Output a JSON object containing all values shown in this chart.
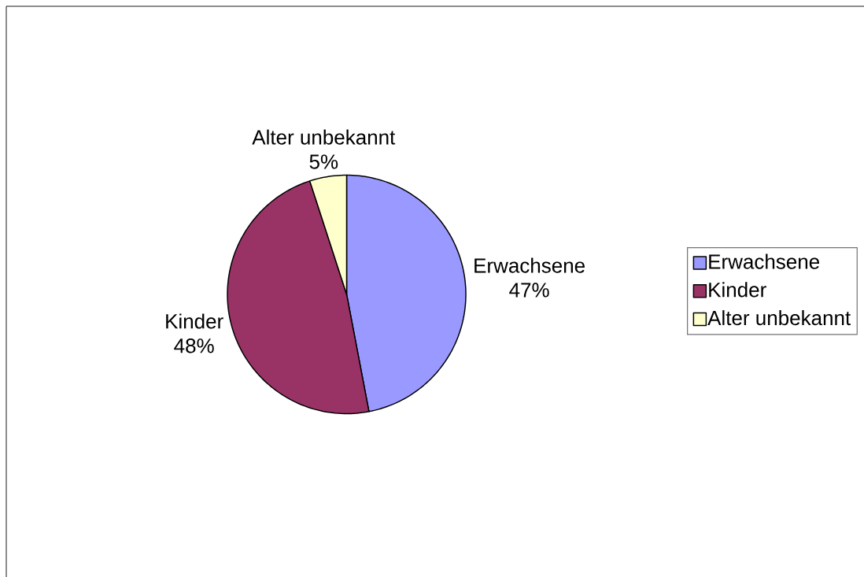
{
  "chart_data": {
    "type": "pie",
    "categories": [
      "Erwachsene",
      "Kinder",
      "Alter unbekannt"
    ],
    "values": [
      47,
      48,
      5
    ],
    "colors": [
      "#9999ff",
      "#993366",
      "#ffffcc"
    ],
    "value_labels": [
      "47%",
      "48%",
      "5%"
    ],
    "legend": "right"
  }
}
